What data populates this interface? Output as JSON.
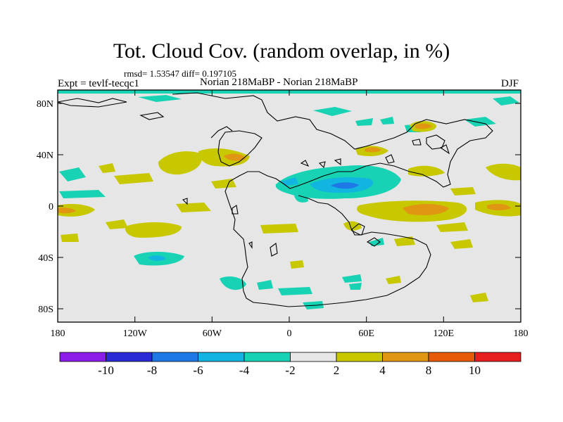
{
  "title": "Tot. Cloud Cov. (random overlap, in %)",
  "stats": "rmsd= 1.53547 diff= 0.197105",
  "experiment": "Expt = tevlf-tecqc1",
  "comparison": "Norian 218MaBP - Norian 218MaBP",
  "season": "DJF",
  "axes": {
    "lat_ticks": [
      "80N",
      "40N",
      "0",
      "40S",
      "80S"
    ],
    "lon_ticks": [
      "180",
      "120W",
      "60W",
      "0",
      "60E",
      "120E",
      "180"
    ]
  },
  "colorbar": {
    "labels": [
      "-10",
      "-8",
      "-6",
      "-4",
      "-2",
      "2",
      "4",
      "8",
      "10"
    ],
    "colors": [
      "#8a1ee6",
      "#2a2ad6",
      "#1e78e6",
      "#12b4e0",
      "#18d2b4",
      "#e6e6e6",
      "#c8c800",
      "#e09612",
      "#e65a0a",
      "#e61e1e"
    ]
  },
  "colors": {
    "frame": "#000000",
    "background_field": "#e6e6e6",
    "coastline": "#000000"
  }
}
